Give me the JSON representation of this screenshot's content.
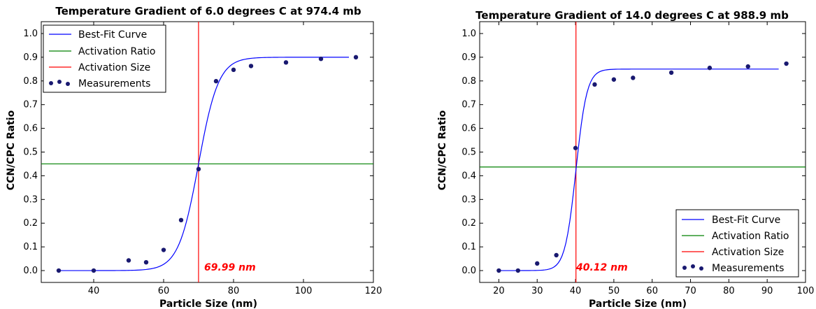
{
  "chart_data": [
    {
      "type": "scatter",
      "title": "Temperature Gradient of 6.0 degrees C at 974.4 mb",
      "xlabel": "Particle Size (nm)",
      "ylabel": "CCN/CPC Ratio",
      "xlim": [
        25,
        120
      ],
      "ylim": [
        -0.05,
        1.05
      ],
      "xticks": [
        "40",
        "60",
        "80",
        "100",
        "120"
      ],
      "xtick_values": [
        40,
        60,
        80,
        100,
        120
      ],
      "yticks": [
        "0.0",
        "0.1",
        "0.2",
        "0.3",
        "0.4",
        "0.5",
        "0.6",
        "0.7",
        "0.8",
        "0.9",
        "1.0"
      ],
      "ytick_values": [
        0,
        0.1,
        0.2,
        0.3,
        0.4,
        0.5,
        0.6,
        0.7,
        0.8,
        0.9,
        1.0
      ],
      "measurements": {
        "x": [
          30,
          40,
          50,
          55,
          60,
          65,
          70,
          75,
          80,
          85,
          95,
          105,
          115
        ],
        "y": [
          0.0,
          0.0,
          0.043,
          0.035,
          0.087,
          0.213,
          0.428,
          0.799,
          0.847,
          0.863,
          0.878,
          0.893,
          0.9
        ]
      },
      "best_fit": {
        "plateau": 0.9,
        "midpoint": 69.99,
        "slope": 0.35,
        "x_start": 30,
        "x_end": 113
      },
      "activation_ratio": 0.45,
      "activation_size": 69.99,
      "annotation": "69.99 nm",
      "legend": {
        "placement": "top-left",
        "entries": [
          "Best-Fit Curve",
          "Activation Ratio",
          "Activation Size",
          "Measurements"
        ]
      },
      "grid": false
    },
    {
      "type": "scatter",
      "title": "Temperature Gradient of 14.0 degrees C at 988.9 mb",
      "xlabel": "Particle Size (nm)",
      "ylabel": "CCN/CPC Ratio",
      "xlim": [
        15,
        100
      ],
      "ylim": [
        -0.05,
        1.05
      ],
      "xticks": [
        "20",
        "30",
        "40",
        "50",
        "60",
        "70",
        "80",
        "90",
        "100"
      ],
      "xtick_values": [
        20,
        30,
        40,
        50,
        60,
        70,
        80,
        90,
        100
      ],
      "yticks": [
        "0.0",
        "0.1",
        "0.2",
        "0.3",
        "0.4",
        "0.5",
        "0.6",
        "0.7",
        "0.8",
        "0.9",
        "1.0"
      ],
      "ytick_values": [
        0,
        0.1,
        0.2,
        0.3,
        0.4,
        0.5,
        0.6,
        0.7,
        0.8,
        0.9,
        1.0
      ],
      "measurements": {
        "x": [
          20,
          25,
          30,
          35,
          40,
          45,
          50,
          55,
          65,
          75,
          85,
          95
        ],
        "y": [
          0.0,
          0.0,
          0.03,
          0.065,
          0.517,
          0.785,
          0.806,
          0.813,
          0.835,
          0.855,
          0.861,
          0.873
        ]
      },
      "best_fit": {
        "plateau": 0.85,
        "midpoint": 40.12,
        "slope": 0.7,
        "x_start": 20,
        "x_end": 93
      },
      "activation_ratio": 0.437,
      "activation_size": 40.12,
      "annotation": "40.12 nm",
      "legend": {
        "placement": "bottom-right",
        "entries": [
          "Best-Fit Curve",
          "Activation Ratio",
          "Activation Size",
          "Measurements"
        ]
      },
      "grid": false
    }
  ],
  "colors": {
    "best_fit": "#0000ff",
    "activation_ratio": "#008000",
    "activation_size": "#ff0000",
    "measurements": "#191970",
    "annotation": "#ff0000"
  }
}
